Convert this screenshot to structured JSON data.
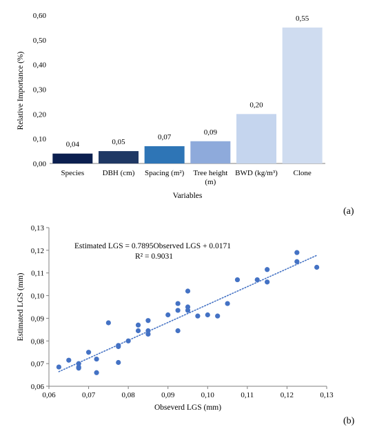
{
  "colors": {
    "bar_series": [
      "#0b1f4f",
      "#1f3864",
      "#2e75b6",
      "#8eaadb",
      "#c5d5ee",
      "#cfdcf0"
    ],
    "scatter_points": "#4472c4",
    "trendline": "#4472c4",
    "axis": "#7f7f7f"
  },
  "panels": {
    "a": "(a)",
    "b": "(b)"
  },
  "chart_data": [
    {
      "type": "bar",
      "ylabel": "Relative Importance (%)",
      "xlabel": "Variables",
      "ylim": [
        0,
        0.6
      ],
      "yticks": [
        "0,00",
        "0,10",
        "0,20",
        "0,30",
        "0,40",
        "0,50",
        "0,60"
      ],
      "categories": [
        [
          "Species"
        ],
        [
          "DBH (cm)"
        ],
        [
          "Spacing (m²)"
        ],
        [
          "Tree height",
          "(m)"
        ],
        [
          "BWD (kg/m³)"
        ],
        [
          "Clone"
        ]
      ],
      "values": [
        0.04,
        0.05,
        0.07,
        0.09,
        0.2,
        0.55
      ],
      "data_labels": [
        "0,04",
        "0,05",
        "0,07",
        "0,09",
        "0,20",
        "0,55"
      ],
      "grid": false,
      "legend": "none"
    },
    {
      "type": "scatter",
      "xlabel": "Obseverd LGS (mm)",
      "ylabel": "Estimated LGS (mm)",
      "xlim": [
        0.06,
        0.13
      ],
      "ylim": [
        0.06,
        0.13
      ],
      "xticks": [
        "0,06",
        "0,07",
        "0,08",
        "0,09",
        "0,10",
        "0,11",
        "0,12",
        "0,13"
      ],
      "yticks": [
        "0,06",
        "0,07",
        "0,08",
        "0,09",
        "0,10",
        "0,11",
        "0,12",
        "0,13"
      ],
      "equation": "Estimated LGS = 0.7895Observed LGS + 0.0171",
      "r_squared": "R² = 0.9031",
      "trendline": {
        "slope": 0.7895,
        "intercept": 0.0171,
        "x_range": [
          0.0625,
          0.1275
        ]
      },
      "points": [
        {
          "x": 0.0625,
          "y": 0.0685
        },
        {
          "x": 0.065,
          "y": 0.0715
        },
        {
          "x": 0.0675,
          "y": 0.07
        },
        {
          "x": 0.0675,
          "y": 0.0685
        },
        {
          "x": 0.0675,
          "y": 0.068
        },
        {
          "x": 0.07,
          "y": 0.075
        },
        {
          "x": 0.072,
          "y": 0.072
        },
        {
          "x": 0.072,
          "y": 0.066
        },
        {
          "x": 0.075,
          "y": 0.088
        },
        {
          "x": 0.0775,
          "y": 0.0775
        },
        {
          "x": 0.0775,
          "y": 0.078
        },
        {
          "x": 0.0775,
          "y": 0.0705
        },
        {
          "x": 0.08,
          "y": 0.08
        },
        {
          "x": 0.0825,
          "y": 0.087
        },
        {
          "x": 0.0825,
          "y": 0.0845
        },
        {
          "x": 0.085,
          "y": 0.089
        },
        {
          "x": 0.085,
          "y": 0.0845
        },
        {
          "x": 0.085,
          "y": 0.083
        },
        {
          "x": 0.09,
          "y": 0.0915
        },
        {
          "x": 0.0925,
          "y": 0.0965
        },
        {
          "x": 0.0925,
          "y": 0.0935
        },
        {
          "x": 0.0925,
          "y": 0.0845
        },
        {
          "x": 0.095,
          "y": 0.102
        },
        {
          "x": 0.095,
          "y": 0.095
        },
        {
          "x": 0.095,
          "y": 0.0935
        },
        {
          "x": 0.0975,
          "y": 0.091
        },
        {
          "x": 0.1,
          "y": 0.0915
        },
        {
          "x": 0.1025,
          "y": 0.091
        },
        {
          "x": 0.105,
          "y": 0.0965
        },
        {
          "x": 0.1075,
          "y": 0.107
        },
        {
          "x": 0.1125,
          "y": 0.107
        },
        {
          "x": 0.115,
          "y": 0.1115
        },
        {
          "x": 0.115,
          "y": 0.106
        },
        {
          "x": 0.1225,
          "y": 0.119
        },
        {
          "x": 0.1225,
          "y": 0.115
        },
        {
          "x": 0.1275,
          "y": 0.1125
        }
      ],
      "grid": false,
      "legend": "none"
    }
  ]
}
